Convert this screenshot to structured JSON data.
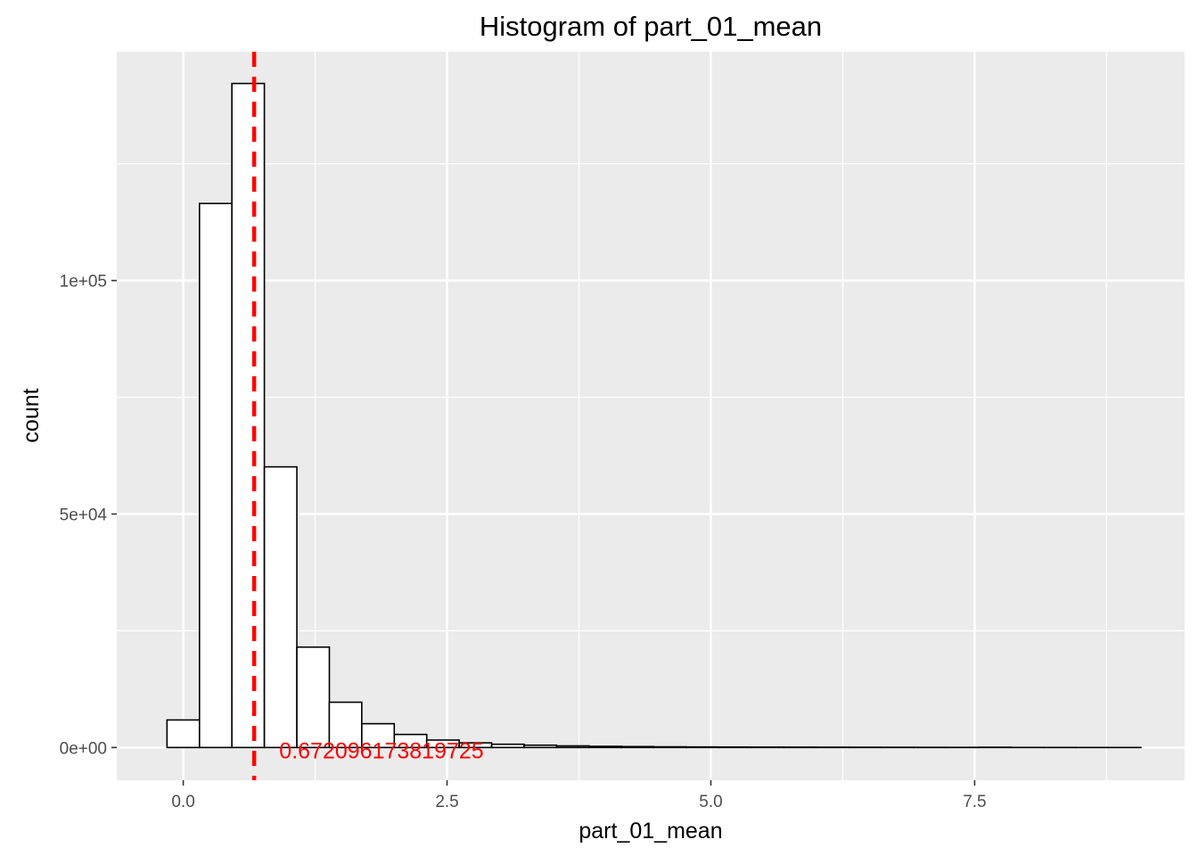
{
  "chart_data": {
    "type": "bar",
    "title": "Histogram of  part_01_mean",
    "xlabel": "part_01_mean",
    "ylabel": "count",
    "x_ticks": [
      0.0,
      2.5,
      5.0,
      7.5
    ],
    "x_tick_labels": [
      "0.0",
      "2.5",
      "5.0",
      "7.5"
    ],
    "y_ticks": [
      0,
      50000,
      100000
    ],
    "y_tick_labels": [
      "0e+00",
      "5e+04",
      "1e+05"
    ],
    "xlim": [
      -0.63,
      9.49
    ],
    "ylim": [
      -7000,
      149000
    ],
    "bin_width": 0.3077,
    "bins": [
      {
        "x0": -0.154,
        "count": 5900
      },
      {
        "x0": 0.154,
        "count": 116500
      },
      {
        "x0": 0.461,
        "count": 142200
      },
      {
        "x0": 0.769,
        "count": 60100
      },
      {
        "x0": 1.077,
        "count": 21500
      },
      {
        "x0": 1.384,
        "count": 9700
      },
      {
        "x0": 1.692,
        "count": 5100
      },
      {
        "x0": 2.0,
        "count": 2800
      },
      {
        "x0": 2.307,
        "count": 1600
      },
      {
        "x0": 2.615,
        "count": 1000
      },
      {
        "x0": 2.923,
        "count": 700
      },
      {
        "x0": 3.23,
        "count": 500
      },
      {
        "x0": 3.538,
        "count": 350
      },
      {
        "x0": 3.846,
        "count": 250
      },
      {
        "x0": 4.153,
        "count": 200
      },
      {
        "x0": 4.461,
        "count": 150
      },
      {
        "x0": 4.769,
        "count": 120
      },
      {
        "x0": 5.076,
        "count": 100
      },
      {
        "x0": 5.384,
        "count": 90
      },
      {
        "x0": 5.692,
        "count": 80
      },
      {
        "x0": 5.999,
        "count": 70
      },
      {
        "x0": 6.307,
        "count": 60
      },
      {
        "x0": 6.615,
        "count": 50
      },
      {
        "x0": 6.922,
        "count": 40
      },
      {
        "x0": 7.23,
        "count": 30
      },
      {
        "x0": 7.538,
        "count": 60
      },
      {
        "x0": 7.845,
        "count": 20
      },
      {
        "x0": 8.153,
        "count": 15
      },
      {
        "x0": 8.461,
        "count": 10
      },
      {
        "x0": 8.768,
        "count": 5
      }
    ],
    "mean_line": {
      "x": 0.672096173819725,
      "color": "#ff0000",
      "style": "dashed"
    },
    "annotation": {
      "text": "0.672096173819725",
      "x": 0.91,
      "y": 0,
      "color": "#ff0000"
    },
    "panel_background": "#ebebeb",
    "grid_color": "#ffffff",
    "bar_fill": "#ffffff",
    "bar_stroke": "#000000",
    "grid": true,
    "legend": "none"
  }
}
